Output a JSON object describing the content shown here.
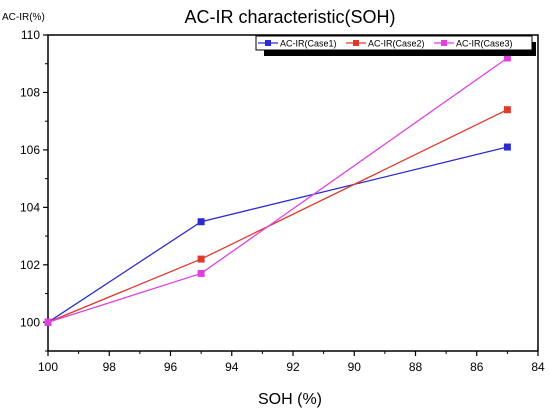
{
  "chart_data": {
    "type": "line",
    "title": "AC-IR characteristic(SOH)",
    "xlabel": "SOH (%)",
    "ylabel": "AC-IR(%)",
    "xlim": [
      100,
      84
    ],
    "ylim": [
      99,
      110
    ],
    "x_ticks": [
      "100",
      "98",
      "96",
      "94",
      "92",
      "90",
      "88",
      "86",
      "84"
    ],
    "y_ticks": [
      "100",
      "102",
      "104",
      "106",
      "108",
      "110"
    ],
    "grid": false,
    "legend_position": "top-right",
    "series": [
      {
        "name": "AC-IR(Case1)",
        "color": "#2b2bd1",
        "x": [
          100,
          95,
          85
        ],
        "y": [
          100.0,
          103.5,
          106.1
        ]
      },
      {
        "name": "AC-IR(Case2)",
        "color": "#dd3a2c",
        "x": [
          100,
          95,
          85
        ],
        "y": [
          100.0,
          102.2,
          107.4
        ]
      },
      {
        "name": "AC-IR(Case3)",
        "color": "#e040e0",
        "x": [
          100,
          95,
          85
        ],
        "y": [
          100.0,
          101.7,
          109.2
        ]
      }
    ]
  }
}
